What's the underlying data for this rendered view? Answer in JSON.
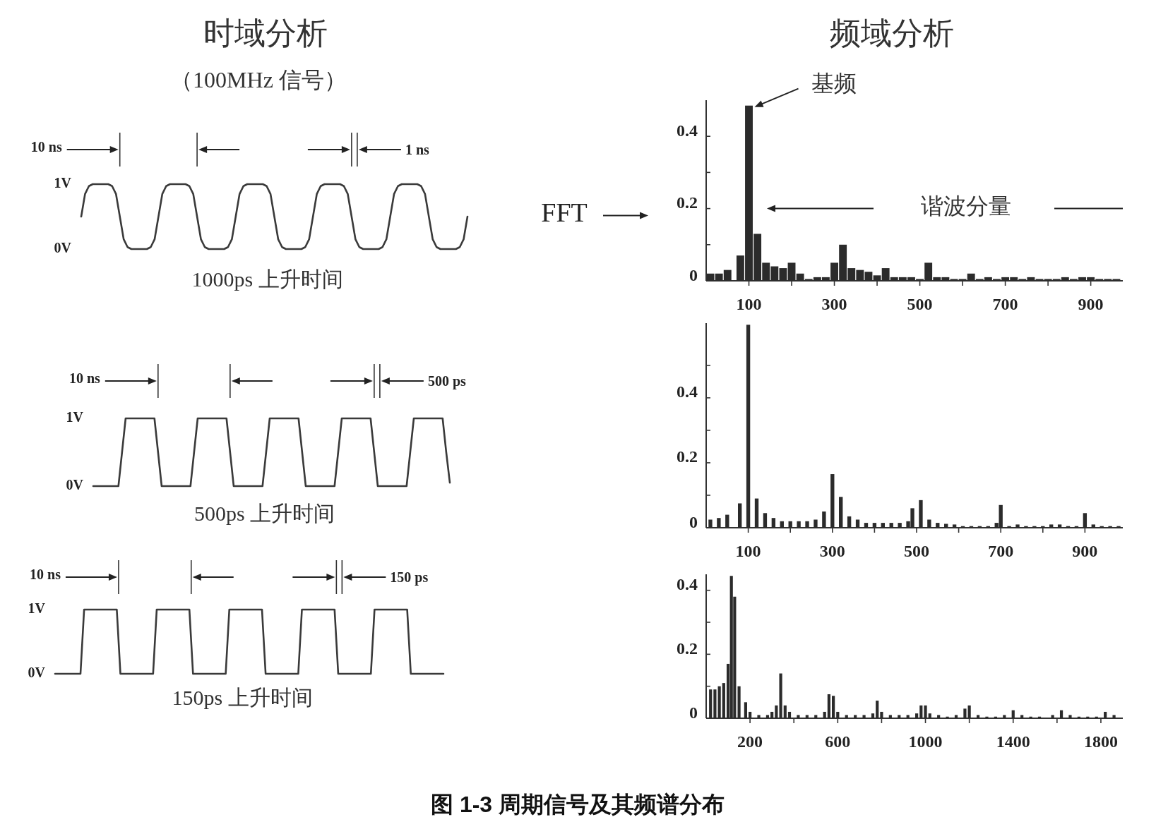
{
  "chart_data": [
    {
      "type": "line",
      "title": "时域分析",
      "subtitle": "（100MHz 信号）",
      "xlabel": "1000ps 上升时间",
      "annotations": [
        "10 ns",
        "1 ns"
      ],
      "color": "#3a3a3a",
      "tick_labels": "y",
      "ylim": [
        0,
        1
      ],
      "yticks": [
        {
          "value": 1,
          "label": "1V"
        },
        {
          "value": 0,
          "label": "0V"
        }
      ],
      "categories": [
        null,
        null,
        null,
        null,
        null,
        null,
        null,
        null,
        null,
        null,
        null,
        null,
        null,
        null,
        null,
        null,
        null,
        null,
        null,
        null,
        null,
        null,
        null,
        null,
        null,
        null,
        null,
        null,
        null,
        null,
        null,
        null,
        null,
        null,
        null,
        null,
        null,
        null,
        null,
        null,
        null,
        null,
        null,
        null,
        null,
        null,
        null,
        null,
        null,
        null,
        null,
        null,
        null,
        null,
        null,
        null,
        null,
        null,
        null,
        null,
        null,
        null,
        null,
        null,
        null,
        null,
        null,
        null,
        null,
        null,
        null,
        null,
        null,
        null,
        null,
        null,
        null,
        null,
        null,
        null,
        null,
        null,
        null,
        null,
        null,
        null,
        null,
        null,
        null,
        null,
        null,
        null,
        null,
        null,
        null,
        null,
        null,
        null,
        null,
        null,
        null
      ],
      "values": [
        0.5,
        0.85,
        0.97,
        1,
        1,
        1,
        1,
        1,
        0.97,
        0.85,
        0.5,
        0.15,
        0.03,
        0,
        0,
        0,
        0,
        0,
        0.03,
        0.15,
        0.5,
        0.85,
        0.97,
        1,
        1,
        1,
        1,
        1,
        0.97,
        0.85,
        0.5,
        0.15,
        0.03,
        0,
        0,
        0,
        0,
        0,
        0.03,
        0.15,
        0.5,
        0.85,
        0.97,
        1,
        1,
        1,
        1,
        1,
        0.97,
        0.85,
        0.5,
        0.15,
        0.03,
        0,
        0,
        0,
        0,
        0,
        0.03,
        0.15,
        0.5,
        0.85,
        0.97,
        1,
        1,
        1,
        1,
        1,
        0.97,
        0.85,
        0.5,
        0.15,
        0.03,
        0,
        0,
        0,
        0,
        0,
        0.03,
        0.15,
        0.5,
        0.85,
        0.97,
        1,
        1,
        1,
        1,
        1,
        0.97,
        0.85,
        0.5,
        0.15,
        0.03,
        0,
        0,
        0,
        0,
        0,
        0.03,
        0.15,
        0.5
      ]
    },
    {
      "type": "bar",
      "title": "频域分析",
      "annotations": [
        {
          "text": "基频",
          "x": 100,
          "y": 0.485
        },
        "FFT",
        "谐波分量"
      ],
      "color": "#2b2b2b",
      "xlim": [
        0,
        975
      ],
      "xticks": [
        100,
        {
          "value": 200,
          "label": null
        },
        300,
        {
          "value": 400,
          "label": null
        },
        500,
        {
          "value": 600,
          "label": null
        },
        700,
        {
          "value": 800,
          "label": null
        },
        900
      ],
      "ylim": [
        0,
        0.5
      ],
      "yticks": [
        0,
        {
          "value": 0.1,
          "label": null
        },
        0.2,
        {
          "value": 0.3,
          "label": null
        },
        0.4
      ],
      "x": [
        10,
        30,
        50,
        80,
        100,
        120,
        140,
        160,
        180,
        200,
        220,
        240,
        260,
        280,
        300,
        320,
        340,
        360,
        380,
        400,
        420,
        440,
        460,
        480,
        500,
        520,
        540,
        560,
        580,
        600,
        620,
        640,
        660,
        680,
        700,
        720,
        740,
        760,
        780,
        800,
        820,
        840,
        860,
        880,
        900,
        920,
        940,
        960
      ],
      "values": [
        0.02,
        0.02,
        0.03,
        0.07,
        0.485,
        0.13,
        0.05,
        0.04,
        0.035,
        0.05,
        0.02,
        0.005,
        0.01,
        0.01,
        0.05,
        0.1,
        0.035,
        0.03,
        0.025,
        0.015,
        0.035,
        0.01,
        0.01,
        0.01,
        0.005,
        0.05,
        0.01,
        0.01,
        0.005,
        0.005,
        0.02,
        0.005,
        0.01,
        0.005,
        0.01,
        0.01,
        0.005,
        0.01,
        0.005,
        0.005,
        0.005,
        0.01,
        0.005,
        0.01,
        0.01,
        0.005,
        0.005,
        0.005
      ]
    },
    {
      "type": "line",
      "xlabel": "500ps 上升时间",
      "annotations": [
        "10 ns",
        "500 ps"
      ],
      "color": "#3a3a3a",
      "tick_labels": "y",
      "ylim": [
        0,
        1
      ],
      "yticks": [
        {
          "value": 1,
          "label": "1V"
        },
        {
          "value": 0,
          "label": "0V"
        }
      ],
      "categories": [
        null,
        null,
        null,
        null,
        null,
        null,
        null,
        null,
        null,
        null,
        null,
        null,
        null,
        null,
        null,
        null,
        null,
        null,
        null,
        null,
        null,
        null,
        null,
        null,
        null,
        null,
        null,
        null,
        null,
        null,
        null,
        null,
        null,
        null,
        null,
        null,
        null,
        null,
        null,
        null,
        null,
        null,
        null,
        null,
        null,
        null,
        null,
        null,
        null,
        null,
        null,
        null,
        null,
        null,
        null,
        null,
        null,
        null,
        null,
        null,
        null,
        null,
        null,
        null,
        null,
        null,
        null,
        null,
        null,
        null,
        null,
        null,
        null,
        null,
        null,
        null,
        null,
        null,
        null,
        null,
        null,
        null,
        null,
        null,
        null,
        null,
        null,
        null,
        null,
        null,
        null,
        null,
        null,
        null,
        null,
        null,
        null,
        null,
        null,
        null
      ],
      "values": [
        0,
        0,
        0,
        0,
        0,
        0,
        0,
        0,
        0.5,
        1,
        1,
        1,
        1,
        1,
        1,
        1,
        1,
        1,
        0.5,
        0,
        0,
        0,
        0,
        0,
        0,
        0,
        0,
        0,
        0.5,
        1,
        1,
        1,
        1,
        1,
        1,
        1,
        1,
        1,
        0.5,
        0,
        0,
        0,
        0,
        0,
        0,
        0,
        0,
        0,
        0.5,
        1,
        1,
        1,
        1,
        1,
        1,
        1,
        1,
        1,
        0.5,
        0,
        0,
        0,
        0,
        0,
        0,
        0,
        0,
        0,
        0.5,
        1,
        1,
        1,
        1,
        1,
        1,
        1,
        1,
        1,
        0.5,
        0,
        0,
        0,
        0,
        0,
        0,
        0,
        0,
        0,
        0.5,
        1,
        1,
        1,
        1,
        1,
        1,
        1,
        1,
        1,
        0.5,
        0.05
      ]
    },
    {
      "type": "bar",
      "color": "#2b2b2b",
      "xlim": [
        0,
        990
      ],
      "xticks": [
        100,
        {
          "value": 200,
          "label": null
        },
        300,
        {
          "value": 400,
          "label": null
        },
        500,
        {
          "value": 600,
          "label": null
        },
        700,
        {
          "value": 800,
          "label": null
        },
        900
      ],
      "ylim": [
        0,
        0.63
      ],
      "yticks": [
        0,
        {
          "value": 0.1,
          "label": null
        },
        0.2,
        {
          "value": 0.3,
          "label": null
        },
        0.4,
        {
          "value": 0.5,
          "label": null
        }
      ],
      "x": [
        10,
        30,
        50,
        80,
        100,
        120,
        140,
        160,
        180,
        200,
        220,
        240,
        260,
        280,
        300,
        320,
        340,
        360,
        380,
        400,
        420,
        440,
        460,
        480,
        490,
        510,
        530,
        550,
        570,
        590,
        610,
        630,
        650,
        670,
        690,
        700,
        720,
        740,
        760,
        780,
        800,
        820,
        840,
        860,
        880,
        900,
        920,
        940,
        960,
        980
      ],
      "values": [
        0.025,
        0.03,
        0.04,
        0.075,
        0.625,
        0.09,
        0.045,
        0.03,
        0.02,
        0.02,
        0.02,
        0.02,
        0.025,
        0.05,
        0.165,
        0.095,
        0.035,
        0.025,
        0.015,
        0.015,
        0.015,
        0.015,
        0.015,
        0.02,
        0.06,
        0.085,
        0.025,
        0.015,
        0.012,
        0.01,
        0.005,
        0.005,
        0.005,
        0.005,
        0.015,
        0.07,
        0.005,
        0.01,
        0.005,
        0.005,
        0.005,
        0.01,
        0.01,
        0.005,
        0.005,
        0.045,
        0.01,
        0.005,
        0.005,
        0.005
      ]
    },
    {
      "type": "line",
      "xlabel": "150ps 上升时间",
      "annotations": [
        "10 ns",
        "150 ps"
      ],
      "color": "#3a3a3a",
      "tick_labels": "y",
      "ylim": [
        0,
        1
      ],
      "yticks": [
        {
          "value": 1,
          "label": "1V"
        },
        {
          "value": 0,
          "label": "0V"
        }
      ],
      "categories": [
        null,
        null,
        null,
        null,
        null,
        null,
        null,
        null,
        null,
        null,
        null,
        null,
        null,
        null,
        null,
        null,
        null,
        null,
        null,
        null,
        null,
        null,
        null,
        null,
        null,
        null,
        null,
        null,
        null,
        null,
        null,
        null,
        null,
        null,
        null,
        null,
        null,
        null,
        null,
        null,
        null,
        null,
        null,
        null,
        null,
        null,
        null,
        null,
        null,
        null,
        null,
        null,
        null,
        null,
        null,
        null,
        null,
        null,
        null,
        null,
        null,
        null,
        null,
        null,
        null,
        null,
        null,
        null,
        null,
        null,
        null,
        null,
        null,
        null,
        null,
        null,
        null,
        null,
        null,
        null,
        null,
        null,
        null,
        null,
        null,
        null,
        null,
        null,
        null,
        null,
        null,
        null,
        null,
        null,
        null,
        null,
        null,
        null,
        null,
        null,
        null,
        null,
        null,
        null,
        null,
        null,
        null,
        null
      ],
      "values": [
        0,
        0,
        0,
        0,
        0,
        0,
        0,
        0,
        1,
        1,
        1,
        1,
        1,
        1,
        1,
        1,
        1,
        1,
        0,
        0,
        0,
        0,
        0,
        0,
        0,
        0,
        0,
        0,
        1,
        1,
        1,
        1,
        1,
        1,
        1,
        1,
        1,
        1,
        0,
        0,
        0,
        0,
        0,
        0,
        0,
        0,
        0,
        0,
        1,
        1,
        1,
        1,
        1,
        1,
        1,
        1,
        1,
        1,
        0,
        0,
        0,
        0,
        0,
        0,
        0,
        0,
        0,
        0,
        1,
        1,
        1,
        1,
        1,
        1,
        1,
        1,
        1,
        1,
        0,
        0,
        0,
        0,
        0,
        0,
        0,
        0,
        0,
        0,
        1,
        1,
        1,
        1,
        1,
        1,
        1,
        1,
        1,
        1,
        0,
        0,
        0,
        0,
        0,
        0,
        0,
        0,
        0,
        0
      ]
    },
    {
      "type": "bar",
      "annotations": [
        "图 1-3  周期信号及其频谱分布"
      ],
      "color": "#2b2b2b",
      "xlim": [
        0,
        1900
      ],
      "xticks": [
        200,
        {
          "value": 400,
          "label": null
        },
        600,
        {
          "value": 800,
          "label": null
        },
        1000,
        {
          "value": 1200,
          "label": null
        },
        1400,
        {
          "value": 1600,
          "label": null
        },
        1800
      ],
      "ylim": [
        0,
        0.45
      ],
      "yticks": [
        0,
        {
          "value": 0.1,
          "label": null
        },
        0.2,
        {
          "value": 0.3,
          "label": null
        },
        0.4
      ],
      "x": [
        20,
        40,
        60,
        80,
        100,
        115,
        130,
        150,
        180,
        200,
        240,
        280,
        300,
        320,
        340,
        360,
        380,
        420,
        460,
        500,
        540,
        560,
        580,
        600,
        640,
        680,
        720,
        760,
        780,
        800,
        840,
        880,
        920,
        960,
        980,
        1000,
        1020,
        1060,
        1100,
        1140,
        1180,
        1200,
        1240,
        1280,
        1320,
        1360,
        1400,
        1440,
        1480,
        1520,
        1580,
        1620,
        1660,
        1700,
        1740,
        1780,
        1820,
        1860
      ],
      "values": [
        0.09,
        0.09,
        0.1,
        0.11,
        0.17,
        0.445,
        0.38,
        0.1,
        0.05,
        0.02,
        0.01,
        0.01,
        0.02,
        0.04,
        0.14,
        0.04,
        0.02,
        0.01,
        0.01,
        0.01,
        0.02,
        0.075,
        0.07,
        0.02,
        0.01,
        0.01,
        0.01,
        0.015,
        0.055,
        0.02,
        0.01,
        0.01,
        0.01,
        0.015,
        0.04,
        0.04,
        0.015,
        0.01,
        0.005,
        0.01,
        0.03,
        0.04,
        0.01,
        0.005,
        0.005,
        0.01,
        0.025,
        0.01,
        0.005,
        0.005,
        0.01,
        0.025,
        0.01,
        0.005,
        0.005,
        0.005,
        0.02,
        0.01
      ]
    }
  ]
}
